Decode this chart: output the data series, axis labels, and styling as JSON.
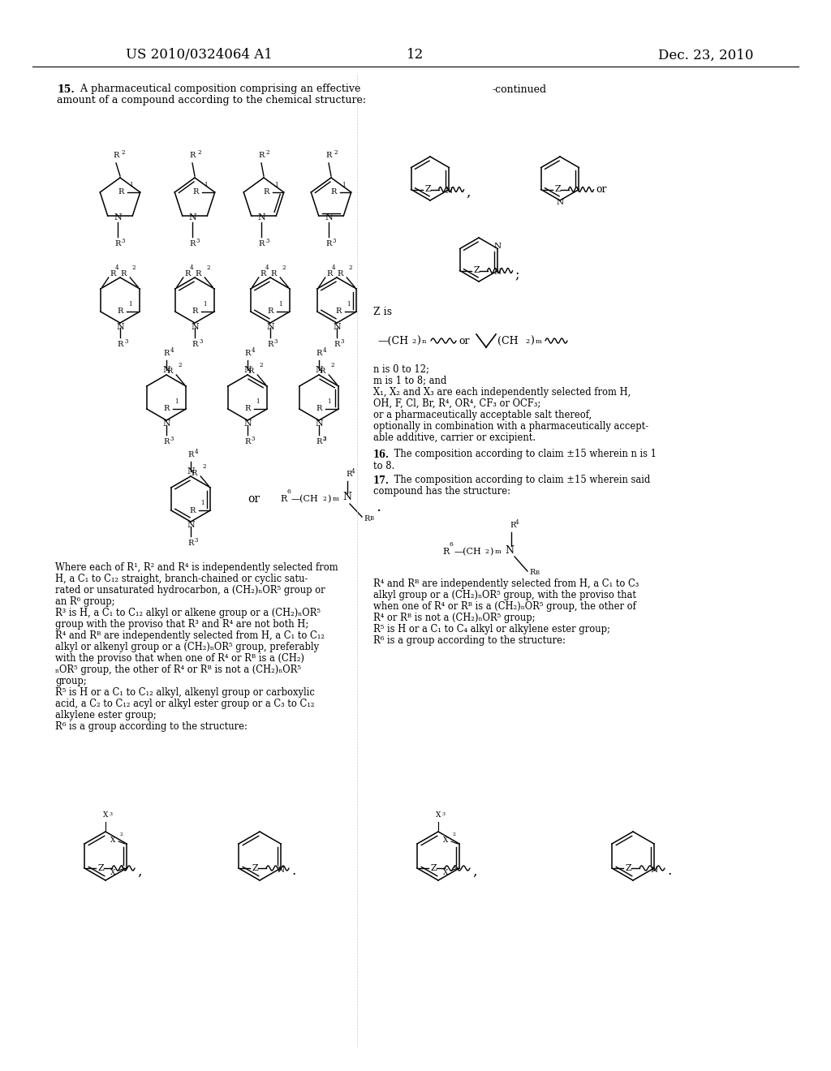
{
  "background_color": "#ffffff",
  "page_num": "12",
  "patent_left": "US 2010/0324064 A1",
  "patent_right": "Dec. 23, 2010",
  "figsize": [
    10.24,
    13.2
  ],
  "dpi": 100
}
